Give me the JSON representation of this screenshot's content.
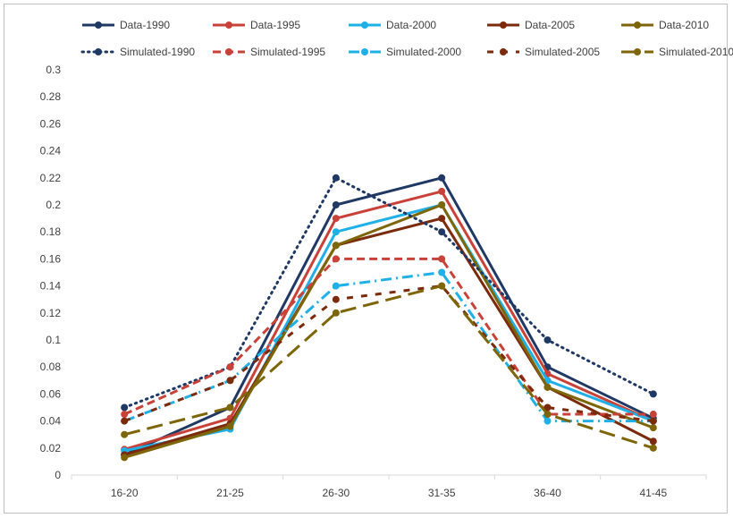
{
  "chart_data": {
    "type": "line",
    "categories": [
      "16-20",
      "21-25",
      "26-30",
      "31-35",
      "36-40",
      "41-45"
    ],
    "ylim": [
      0,
      0.3
    ],
    "yticks": [
      "0",
      "0.02",
      "0.04",
      "0.06",
      "0.08",
      "0.1",
      "0.12",
      "0.14",
      "0.16",
      "0.18",
      "0.2",
      "0.22",
      "0.24",
      "0.26",
      "0.28",
      "0.3"
    ],
    "legend_position": "top",
    "grid": false,
    "series": [
      {
        "name": "Data-1990",
        "color": "#1f3864",
        "dash": "solid",
        "values": [
          0.015,
          0.05,
          0.2,
          0.22,
          0.08,
          0.042
        ]
      },
      {
        "name": "Data-1995",
        "color": "#c9423a",
        "dash": "solid",
        "values": [
          0.019,
          0.042,
          0.19,
          0.21,
          0.075,
          0.04
        ]
      },
      {
        "name": "Data-2000",
        "color": "#1fb0e8",
        "dash": "solid",
        "values": [
          0.018,
          0.034,
          0.18,
          0.2,
          0.07,
          0.04
        ]
      },
      {
        "name": "Data-2005",
        "color": "#7b2a0c",
        "dash": "solid",
        "values": [
          0.015,
          0.038,
          0.17,
          0.19,
          0.065,
          0.025
        ]
      },
      {
        "name": "Data-2010",
        "color": "#7d6608",
        "dash": "solid",
        "values": [
          0.013,
          0.036,
          0.17,
          0.2,
          0.065,
          0.035
        ]
      },
      {
        "name": "Simulated-1990",
        "color": "#1f3864",
        "dash": "dot",
        "values": [
          0.05,
          0.08,
          0.22,
          0.18,
          0.1,
          0.06
        ]
      },
      {
        "name": "Simulated-1995",
        "color": "#c9423a",
        "dash": "dash",
        "values": [
          0.045,
          0.08,
          0.16,
          0.16,
          0.045,
          0.045
        ]
      },
      {
        "name": "Simulated-2000",
        "color": "#1fb0e8",
        "dash": "dashdot",
        "values": [
          0.04,
          0.07,
          0.14,
          0.15,
          0.04,
          0.04
        ]
      },
      {
        "name": "Simulated-2005",
        "color": "#7b2a0c",
        "dash": "sparse",
        "values": [
          0.04,
          0.07,
          0.13,
          0.14,
          0.05,
          0.04
        ]
      },
      {
        "name": "Simulated-2010",
        "color": "#7d6608",
        "dash": "longdash",
        "values": [
          0.03,
          0.05,
          0.12,
          0.14,
          0.045,
          0.02
        ]
      }
    ]
  }
}
